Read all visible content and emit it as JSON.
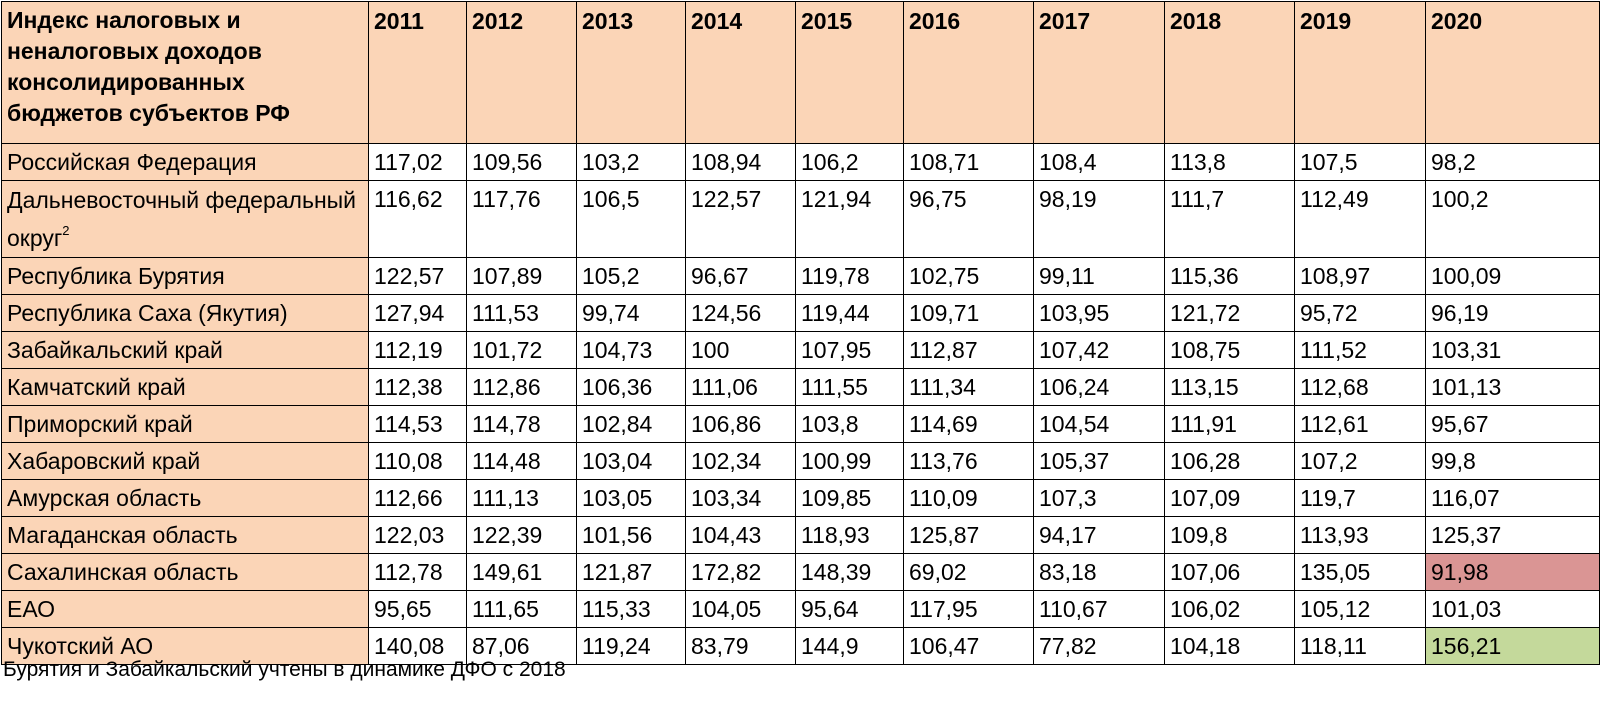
{
  "table": {
    "header_label": "Индекс налоговых и неналоговых доходов консолидированных бюджетов субъектов РФ",
    "years": [
      "2011",
      "2012",
      "2013",
      "2014",
      "2015",
      "2016",
      "2017",
      "2018",
      "2019",
      "2020"
    ],
    "rows": [
      {
        "name": "Российская Федерация",
        "values": [
          "117,02",
          "109,56",
          "103,2",
          "108,94",
          "106,2",
          "108,71",
          "108,4",
          "113,8",
          "107,5",
          "98,2"
        ]
      },
      {
        "name": "Дальневосточный федеральный округ",
        "name_sup": "2",
        "values": [
          "116,62",
          "117,76",
          "106,5",
          "122,57",
          "121,94",
          "96,75",
          "98,19",
          "111,7",
          "112,49",
          "100,2"
        ]
      },
      {
        "name": "Республика Бурятия",
        "values": [
          "122,57",
          "107,89",
          "105,2",
          "96,67",
          "119,78",
          "102,75",
          "99,11",
          "115,36",
          "108,97",
          "100,09"
        ]
      },
      {
        "name": "Республика Саха (Якутия)",
        "values": [
          "127,94",
          "111,53",
          "99,74",
          "124,56",
          "119,44",
          "109,71",
          "103,95",
          "121,72",
          "95,72",
          "96,19"
        ]
      },
      {
        "name": "Забайкальский край",
        "values": [
          "112,19",
          "101,72",
          "104,73",
          "100",
          "107,95",
          "112,87",
          "107,42",
          "108,75",
          "111,52",
          "103,31"
        ]
      },
      {
        "name": "Камчатский край",
        "values": [
          "112,38",
          "112,86",
          "106,36",
          "111,06",
          "111,55",
          "111,34",
          "106,24",
          "113,15",
          "112,68",
          "101,13"
        ]
      },
      {
        "name": "Приморский край",
        "values": [
          "114,53",
          "114,78",
          "102,84",
          "106,86",
          "103,8",
          "114,69",
          "104,54",
          "111,91",
          "112,61",
          "95,67"
        ]
      },
      {
        "name": "Хабаровский край",
        "values": [
          "110,08",
          "114,48",
          "103,04",
          "102,34",
          "100,99",
          "113,76",
          "105,37",
          "106,28",
          "107,2",
          "99,8"
        ]
      },
      {
        "name": "Амурская область",
        "values": [
          "112,66",
          "111,13",
          "103,05",
          "103,34",
          "109,85",
          "110,09",
          "107,3",
          "107,09",
          "119,7",
          "116,07"
        ]
      },
      {
        "name": "Магаданская область",
        "values": [
          "122,03",
          "122,39",
          "101,56",
          "104,43",
          "118,93",
          "125,87",
          "94,17",
          "109,8",
          "113,93",
          "125,37"
        ]
      },
      {
        "name": "Сахалинская область",
        "values": [
          "112,78",
          "149,61",
          "121,87",
          "172,82",
          "148,39",
          "69,02",
          "83,18",
          "107,06",
          "135,05",
          "91,98"
        ]
      },
      {
        "name": "ЕАО",
        "values": [
          "95,65",
          "111,65",
          "115,33",
          "104,05",
          "95,64",
          "117,95",
          "110,67",
          "106,02",
          "105,12",
          "101,03"
        ]
      },
      {
        "name": "Чукотский АО",
        "values": [
          "140,08",
          "87,06",
          "119,24",
          "83,79",
          "144,9",
          "106,47",
          "77,82",
          "104,18",
          "118,11",
          "156,21"
        ]
      }
    ],
    "highlight_colors": {
      "header": "#fbd5b7",
      "red": "#da9594",
      "green": "#c4d99b"
    }
  },
  "footnote": "Бурятия и Забайкальский учтены в динамике ДФО с 2018"
}
